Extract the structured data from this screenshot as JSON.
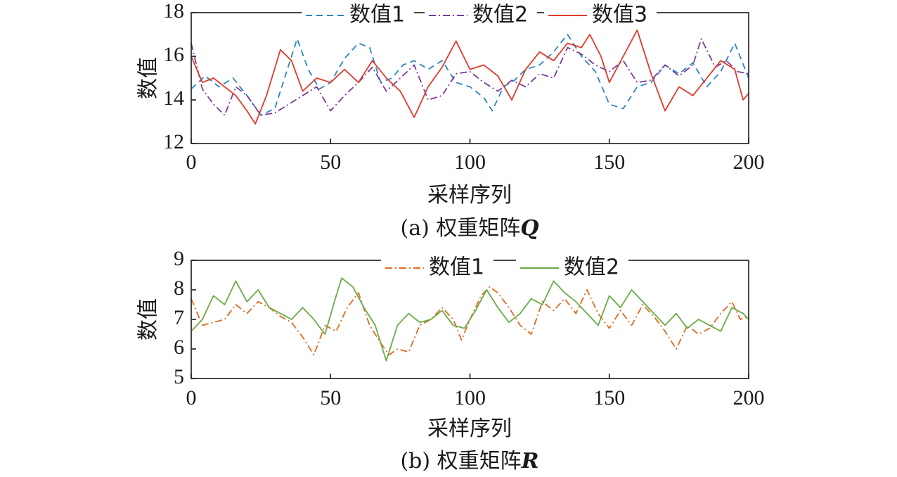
{
  "chart_data": [
    {
      "type": "line",
      "caption_prefix": "(a) 权重矩阵",
      "caption_symbol": "Q",
      "xlabel": "采样序列",
      "ylabel": "数值",
      "xlim": [
        0,
        200
      ],
      "ylim": [
        12,
        18
      ],
      "xticks": [
        "0",
        "50",
        "100",
        "150",
        "200"
      ],
      "yticks": [
        "12",
        "14",
        "16",
        "18"
      ],
      "grid": false,
      "legend_position": "top",
      "series": [
        {
          "name": "数值1",
          "color": "#2a86bf",
          "dash": "dashed",
          "x": [
            0,
            5,
            10,
            15,
            20,
            25,
            30,
            35,
            38,
            42,
            46,
            50,
            55,
            60,
            64,
            68,
            72,
            76,
            80,
            85,
            90,
            95,
            100,
            105,
            108,
            112,
            116,
            120,
            125,
            130,
            135,
            140,
            145,
            150,
            155,
            160,
            165,
            170,
            175,
            180,
            185,
            190,
            195,
            200
          ],
          "y": [
            14.5,
            15.1,
            14.6,
            15.0,
            14.2,
            13.3,
            13.6,
            15.6,
            16.8,
            15.4,
            14.5,
            14.8,
            15.9,
            16.6,
            16.4,
            14.8,
            15.0,
            15.6,
            15.8,
            15.4,
            15.8,
            14.8,
            14.6,
            14.1,
            13.5,
            14.6,
            14.9,
            15.4,
            15.6,
            16.2,
            17.0,
            16.0,
            15.3,
            13.8,
            13.6,
            14.6,
            14.8,
            15.6,
            15.2,
            15.7,
            14.6,
            15.3,
            16.6,
            15.0
          ]
        },
        {
          "name": "数值2",
          "color": "#7a3a9a",
          "dash": "dashdot",
          "x": [
            0,
            4,
            8,
            12,
            16,
            20,
            25,
            30,
            35,
            40,
            45,
            50,
            55,
            60,
            65,
            70,
            75,
            80,
            85,
            90,
            95,
            100,
            105,
            110,
            115,
            120,
            125,
            130,
            135,
            140,
            145,
            150,
            155,
            160,
            165,
            170,
            175,
            180,
            183,
            188,
            192,
            196,
            200
          ],
          "y": [
            16.6,
            14.5,
            13.8,
            13.3,
            14.6,
            14.2,
            13.3,
            13.4,
            13.8,
            14.2,
            14.6,
            13.5,
            14.2,
            14.8,
            15.5,
            14.4,
            15.0,
            15.6,
            14.0,
            14.2,
            15.2,
            15.3,
            14.8,
            14.4,
            14.9,
            14.6,
            15.2,
            15.0,
            16.4,
            16.1,
            15.6,
            15.3,
            15.8,
            14.8,
            14.9,
            15.6,
            15.1,
            15.6,
            16.8,
            15.5,
            15.8,
            15.3,
            15.2
          ]
        },
        {
          "name": "数值3",
          "color": "#e03a2a",
          "dash": "solid",
          "x": [
            0,
            4,
            8,
            12,
            16,
            20,
            23,
            27,
            32,
            36,
            40,
            45,
            50,
            55,
            60,
            65,
            70,
            75,
            80,
            85,
            90,
            95,
            100,
            105,
            110,
            115,
            120,
            125,
            130,
            135,
            140,
            143,
            147,
            150,
            155,
            160,
            165,
            170,
            175,
            180,
            185,
            190,
            195,
            198,
            200
          ],
          "y": [
            16.0,
            14.8,
            15.0,
            14.6,
            14.2,
            13.5,
            12.9,
            14.2,
            16.3,
            15.8,
            14.4,
            15.0,
            14.8,
            15.4,
            14.8,
            15.8,
            15.0,
            14.4,
            13.2,
            14.6,
            15.5,
            16.7,
            15.4,
            15.6,
            15.1,
            14.0,
            15.4,
            16.2,
            15.8,
            16.6,
            16.4,
            17.0,
            16.0,
            14.8,
            16.0,
            17.2,
            15.2,
            13.5,
            14.6,
            14.2,
            15.0,
            15.8,
            15.4,
            14.0,
            14.3
          ]
        }
      ]
    },
    {
      "type": "line",
      "caption_prefix": "(b) 权重矩阵",
      "caption_symbol": "R",
      "xlabel": "采样序列",
      "ylabel": "数值",
      "xlim": [
        0,
        200
      ],
      "ylim": [
        5,
        9
      ],
      "xticks": [
        "0",
        "50",
        "100",
        "150",
        "200"
      ],
      "yticks": [
        "5",
        "6",
        "7",
        "8",
        "9"
      ],
      "grid": false,
      "legend_position": "top",
      "series": [
        {
          "name": "数值1",
          "color": "#e06a1f",
          "dash": "dashdot",
          "x": [
            0,
            4,
            8,
            12,
            16,
            20,
            24,
            28,
            32,
            36,
            40,
            44,
            48,
            52,
            56,
            60,
            64,
            68,
            71,
            74,
            78,
            82,
            86,
            90,
            94,
            97,
            100,
            104,
            107,
            110,
            114,
            118,
            122,
            126,
            130,
            134,
            138,
            142,
            146,
            150,
            154,
            158,
            162,
            166,
            170,
            174,
            178,
            182,
            186,
            190,
            194,
            197,
            200
          ],
          "y": [
            7.7,
            6.8,
            6.9,
            7.0,
            7.5,
            7.2,
            7.6,
            7.4,
            7.1,
            6.9,
            6.4,
            5.8,
            6.8,
            6.6,
            7.4,
            7.9,
            6.8,
            6.2,
            5.8,
            6.0,
            5.9,
            6.8,
            7.0,
            7.4,
            7.0,
            6.3,
            7.0,
            7.8,
            8.1,
            7.9,
            7.4,
            6.8,
            6.5,
            7.6,
            7.3,
            7.7,
            7.2,
            8.0,
            7.2,
            6.7,
            7.3,
            6.8,
            7.5,
            7.1,
            6.6,
            6.0,
            6.8,
            6.5,
            6.7,
            7.2,
            7.6,
            7.0,
            7.1
          ]
        },
        {
          "name": "数值2",
          "color": "#6aab46",
          "dash": "solid",
          "x": [
            0,
            4,
            8,
            12,
            16,
            20,
            24,
            28,
            32,
            36,
            40,
            44,
            48,
            52,
            54,
            58,
            62,
            66,
            70,
            74,
            78,
            82,
            86,
            90,
            94,
            98,
            102,
            106,
            110,
            114,
            118,
            122,
            126,
            130,
            134,
            138,
            142,
            146,
            150,
            154,
            158,
            162,
            166,
            170,
            174,
            178,
            182,
            186,
            190,
            194,
            198,
            200
          ],
          "y": [
            6.6,
            7.0,
            7.8,
            7.5,
            8.3,
            7.6,
            8.0,
            7.4,
            7.2,
            7.0,
            7.4,
            7.0,
            6.5,
            7.8,
            8.4,
            8.1,
            7.4,
            6.8,
            5.6,
            6.8,
            7.2,
            6.9,
            7.0,
            7.3,
            6.8,
            6.7,
            7.3,
            8.0,
            7.4,
            6.9,
            7.2,
            7.7,
            7.5,
            8.3,
            7.9,
            7.6,
            7.2,
            6.8,
            7.8,
            7.4,
            8.0,
            7.6,
            7.2,
            6.8,
            7.2,
            6.7,
            7.0,
            6.8,
            6.6,
            7.4,
            7.2,
            7.0
          ]
        }
      ]
    }
  ]
}
